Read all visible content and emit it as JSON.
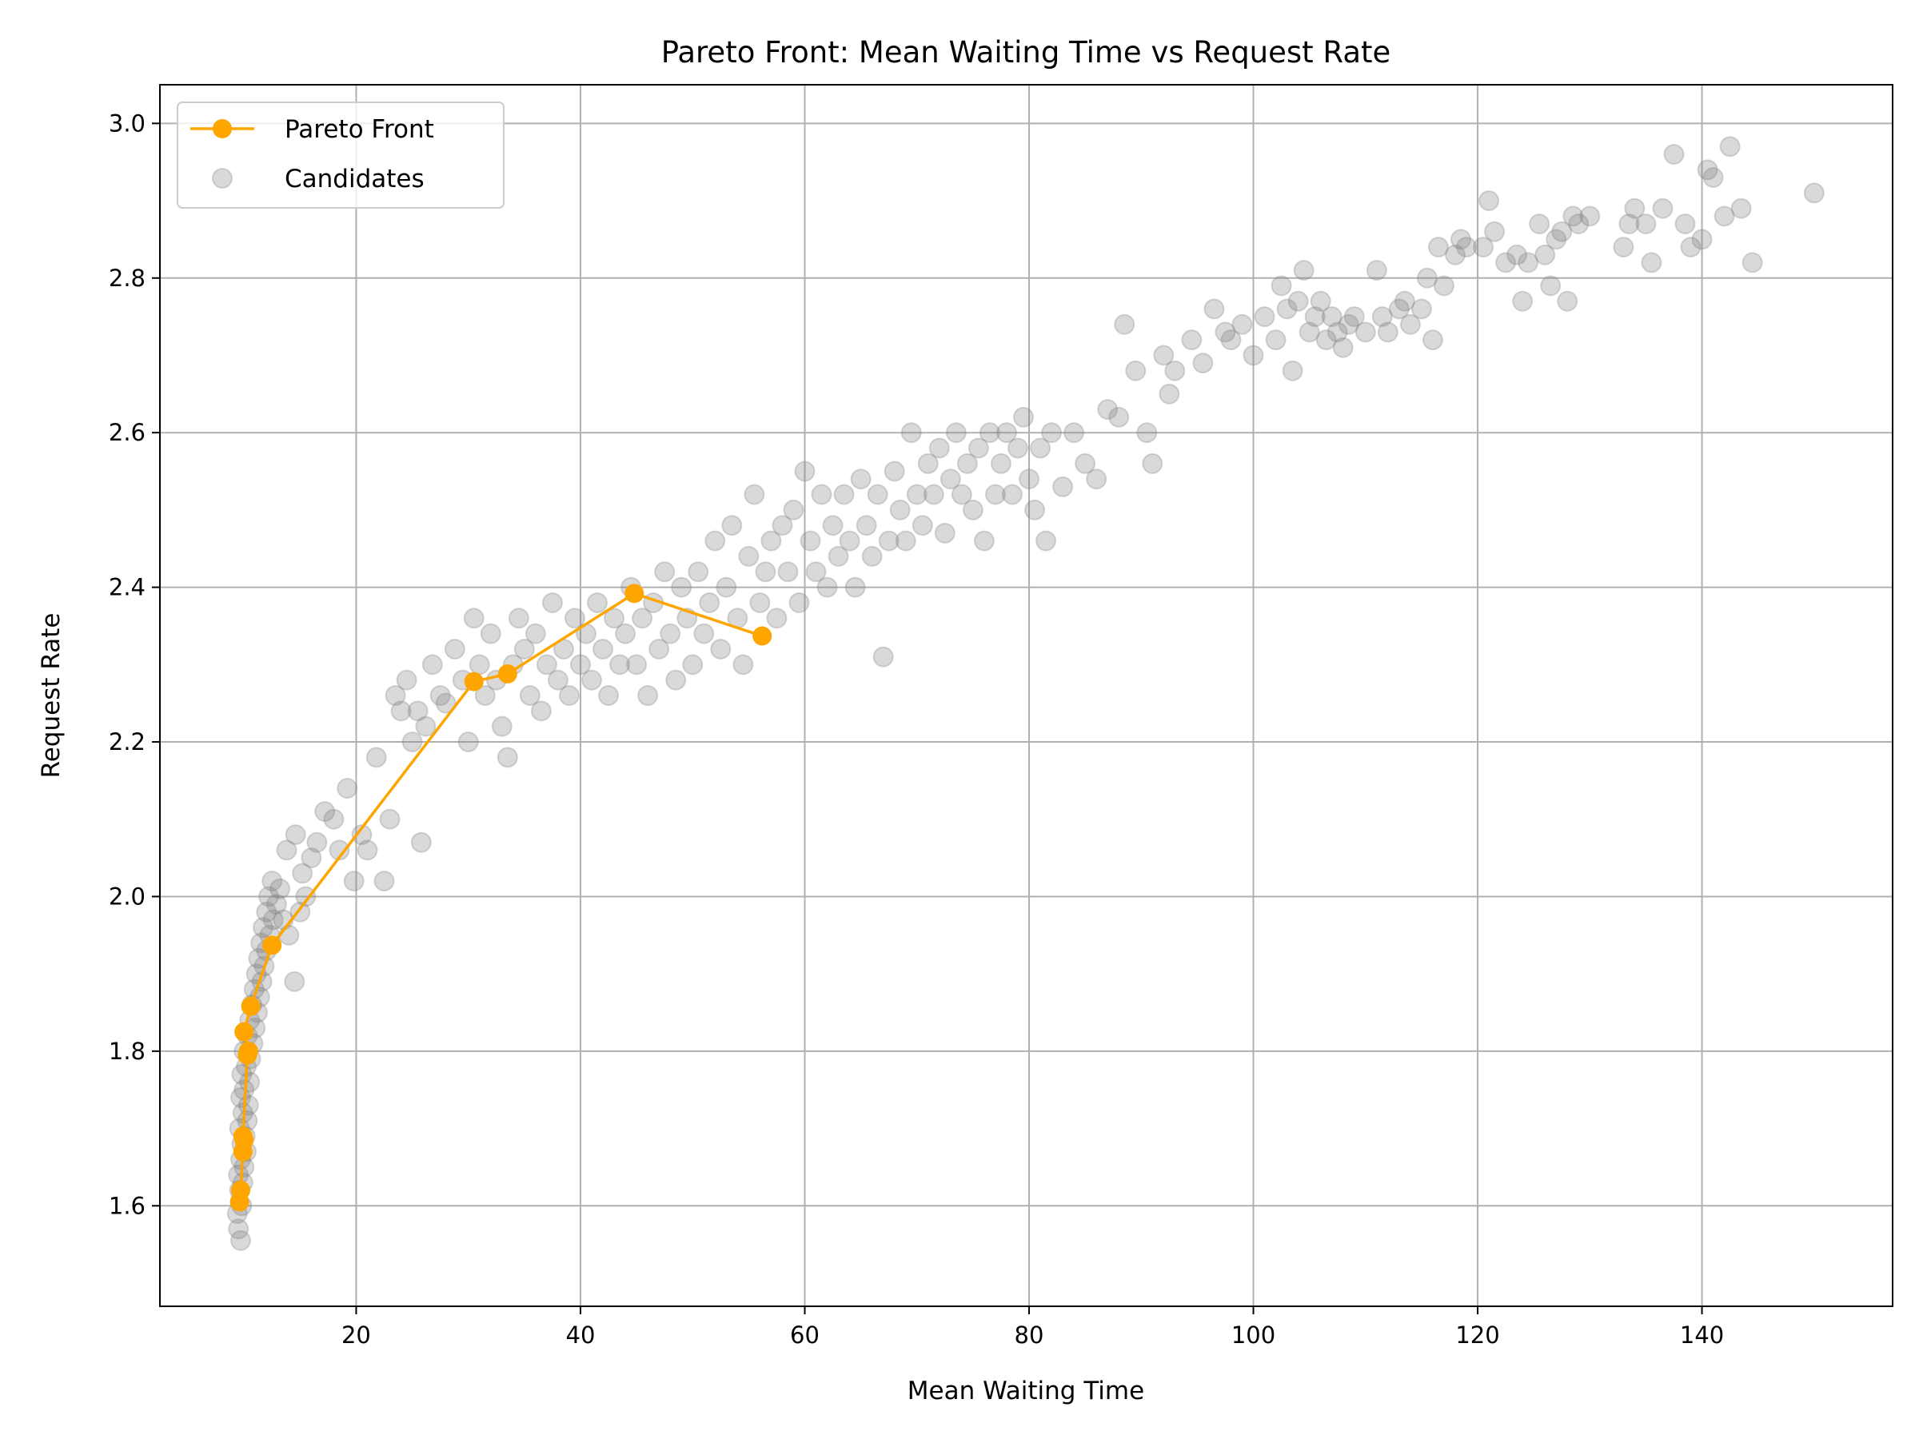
{
  "chart_data": {
    "type": "scatter",
    "title": "Pareto Front: Mean Waiting Time vs Request Rate",
    "xlabel": "Mean Waiting Time",
    "ylabel": "Request Rate",
    "xlim": [
      2.5,
      157
    ],
    "ylim": [
      1.47,
      3.05
    ],
    "xticks": [
      20,
      40,
      60,
      80,
      100,
      120,
      140
    ],
    "yticks": [
      1.6,
      1.8,
      2.0,
      2.2,
      2.4,
      2.6,
      2.8,
      3.0
    ],
    "xtick_labels": [
      "20",
      "40",
      "60",
      "80",
      "100",
      "120",
      "140"
    ],
    "ytick_labels": [
      "1.6",
      "1.8",
      "2.0",
      "2.2",
      "2.4",
      "2.6",
      "2.8",
      "3.0"
    ],
    "grid": true,
    "legend_position": "top-left",
    "legend": [
      "Pareto Front",
      "Candidates"
    ],
    "colors": {
      "pareto": "#ffa500",
      "candidates": "#808080"
    },
    "series": [
      {
        "name": "Pareto Front",
        "type": "line",
        "marker": "circle",
        "points": [
          [
            9.6,
            1.605
          ],
          [
            9.7,
            1.62
          ],
          [
            9.9,
            1.67
          ],
          [
            10.0,
            1.685
          ],
          [
            9.9,
            1.69
          ],
          [
            10.3,
            1.795
          ],
          [
            10.4,
            1.8
          ],
          [
            10.0,
            1.825
          ],
          [
            10.6,
            1.858
          ],
          [
            12.5,
            1.937
          ],
          [
            30.5,
            2.278
          ],
          [
            33.5,
            2.288
          ],
          [
            44.8,
            2.392
          ],
          [
            56.2,
            2.337
          ]
        ]
      },
      {
        "name": "Candidates",
        "type": "scatter",
        "marker": "circle",
        "opacity": 0.3,
        "points": [
          [
            9.5,
            1.57
          ],
          [
            9.7,
            1.555
          ],
          [
            9.4,
            1.59
          ],
          [
            9.8,
            1.6
          ],
          [
            9.6,
            1.62
          ],
          [
            9.9,
            1.63
          ],
          [
            9.5,
            1.64
          ],
          [
            10.0,
            1.65
          ],
          [
            9.7,
            1.66
          ],
          [
            10.2,
            1.67
          ],
          [
            9.8,
            1.68
          ],
          [
            10.1,
            1.69
          ],
          [
            9.6,
            1.7
          ],
          [
            10.3,
            1.71
          ],
          [
            9.9,
            1.72
          ],
          [
            10.4,
            1.73
          ],
          [
            9.7,
            1.74
          ],
          [
            10.0,
            1.75
          ],
          [
            10.5,
            1.76
          ],
          [
            9.8,
            1.77
          ],
          [
            10.2,
            1.78
          ],
          [
            10.6,
            1.79
          ],
          [
            10.0,
            1.8
          ],
          [
            10.8,
            1.81
          ],
          [
            10.3,
            1.82
          ],
          [
            11.0,
            1.83
          ],
          [
            10.5,
            1.84
          ],
          [
            11.2,
            1.85
          ],
          [
            10.7,
            1.86
          ],
          [
            11.4,
            1.87
          ],
          [
            10.9,
            1.88
          ],
          [
            11.6,
            1.89
          ],
          [
            11.1,
            1.9
          ],
          [
            11.8,
            1.91
          ],
          [
            11.3,
            1.92
          ],
          [
            12.0,
            1.93
          ],
          [
            11.5,
            1.94
          ],
          [
            12.3,
            1.95
          ],
          [
            11.7,
            1.96
          ],
          [
            12.6,
            1.97
          ],
          [
            12.0,
            1.98
          ],
          [
            12.9,
            1.99
          ],
          [
            12.2,
            2.0
          ],
          [
            13.2,
            2.01
          ],
          [
            12.5,
            2.02
          ],
          [
            13.5,
            1.97
          ],
          [
            14.0,
            1.95
          ],
          [
            14.5,
            1.89
          ],
          [
            15.0,
            1.98
          ],
          [
            15.5,
            2.0
          ],
          [
            13.8,
            2.06
          ],
          [
            14.6,
            2.08
          ],
          [
            15.2,
            2.03
          ],
          [
            16.0,
            2.05
          ],
          [
            16.5,
            2.07
          ],
          [
            17.2,
            2.11
          ],
          [
            18.0,
            2.1
          ],
          [
            18.5,
            2.06
          ],
          [
            19.2,
            2.14
          ],
          [
            19.8,
            2.02
          ],
          [
            20.5,
            2.08
          ],
          [
            21.0,
            2.06
          ],
          [
            21.8,
            2.18
          ],
          [
            22.5,
            2.02
          ],
          [
            23.0,
            2.1
          ],
          [
            23.5,
            2.26
          ],
          [
            24.0,
            2.24
          ],
          [
            24.5,
            2.28
          ],
          [
            25.0,
            2.2
          ],
          [
            25.5,
            2.24
          ],
          [
            25.8,
            2.07
          ],
          [
            26.2,
            2.22
          ],
          [
            26.8,
            2.3
          ],
          [
            27.5,
            2.26
          ],
          [
            28.0,
            2.25
          ],
          [
            28.8,
            2.32
          ],
          [
            29.5,
            2.28
          ],
          [
            30.0,
            2.2
          ],
          [
            30.5,
            2.36
          ],
          [
            31.0,
            2.3
          ],
          [
            31.5,
            2.26
          ],
          [
            32.0,
            2.34
          ],
          [
            32.5,
            2.28
          ],
          [
            33.0,
            2.22
          ],
          [
            33.5,
            2.18
          ],
          [
            34.0,
            2.3
          ],
          [
            34.5,
            2.36
          ],
          [
            35.0,
            2.32
          ],
          [
            35.5,
            2.26
          ],
          [
            36.0,
            2.34
          ],
          [
            36.5,
            2.24
          ],
          [
            37.0,
            2.3
          ],
          [
            37.5,
            2.38
          ],
          [
            38.0,
            2.28
          ],
          [
            38.5,
            2.32
          ],
          [
            39.0,
            2.26
          ],
          [
            39.5,
            2.36
          ],
          [
            40.0,
            2.3
          ],
          [
            40.5,
            2.34
          ],
          [
            41.0,
            2.28
          ],
          [
            41.5,
            2.38
          ],
          [
            42.0,
            2.32
          ],
          [
            42.5,
            2.26
          ],
          [
            43.0,
            2.36
          ],
          [
            43.5,
            2.3
          ],
          [
            44.0,
            2.34
          ],
          [
            44.5,
            2.4
          ],
          [
            45.0,
            2.3
          ],
          [
            45.5,
            2.36
          ],
          [
            46.0,
            2.26
          ],
          [
            46.5,
            2.38
          ],
          [
            47.0,
            2.32
          ],
          [
            47.5,
            2.42
          ],
          [
            48.0,
            2.34
          ],
          [
            48.5,
            2.28
          ],
          [
            49.0,
            2.4
          ],
          [
            49.5,
            2.36
          ],
          [
            50.0,
            2.3
          ],
          [
            50.5,
            2.42
          ],
          [
            51.0,
            2.34
          ],
          [
            51.5,
            2.38
          ],
          [
            52.0,
            2.46
          ],
          [
            52.5,
            2.32
          ],
          [
            53.0,
            2.4
          ],
          [
            53.5,
            2.48
          ],
          [
            54.0,
            2.36
          ],
          [
            54.5,
            2.3
          ],
          [
            55.0,
            2.44
          ],
          [
            55.5,
            2.52
          ],
          [
            56.0,
            2.38
          ],
          [
            56.5,
            2.42
          ],
          [
            57.0,
            2.46
          ],
          [
            57.5,
            2.36
          ],
          [
            58.0,
            2.48
          ],
          [
            58.5,
            2.42
          ],
          [
            59.0,
            2.5
          ],
          [
            59.5,
            2.38
          ],
          [
            60.0,
            2.55
          ],
          [
            60.5,
            2.46
          ],
          [
            61.0,
            2.42
          ],
          [
            61.5,
            2.52
          ],
          [
            62.0,
            2.4
          ],
          [
            62.5,
            2.48
          ],
          [
            63.0,
            2.44
          ],
          [
            63.5,
            2.52
          ],
          [
            64.0,
            2.46
          ],
          [
            64.5,
            2.4
          ],
          [
            65.0,
            2.54
          ],
          [
            65.5,
            2.48
          ],
          [
            66.0,
            2.44
          ],
          [
            66.5,
            2.52
          ],
          [
            67.0,
            2.31
          ],
          [
            67.5,
            2.46
          ],
          [
            68.0,
            2.55
          ],
          [
            68.5,
            2.5
          ],
          [
            69.0,
            2.46
          ],
          [
            69.5,
            2.6
          ],
          [
            70.0,
            2.52
          ],
          [
            70.5,
            2.48
          ],
          [
            71.0,
            2.56
          ],
          [
            71.5,
            2.52
          ],
          [
            72.0,
            2.58
          ],
          [
            72.5,
            2.47
          ],
          [
            73.0,
            2.54
          ],
          [
            73.5,
            2.6
          ],
          [
            74.0,
            2.52
          ],
          [
            74.5,
            2.56
          ],
          [
            75.0,
            2.5
          ],
          [
            75.5,
            2.58
          ],
          [
            76.0,
            2.46
          ],
          [
            76.5,
            2.6
          ],
          [
            77.0,
            2.52
          ],
          [
            77.5,
            2.56
          ],
          [
            78.0,
            2.6
          ],
          [
            78.5,
            2.52
          ],
          [
            79.0,
            2.58
          ],
          [
            79.5,
            2.62
          ],
          [
            80.0,
            2.54
          ],
          [
            80.5,
            2.5
          ],
          [
            81.0,
            2.58
          ],
          [
            81.5,
            2.46
          ],
          [
            82.0,
            2.6
          ],
          [
            83.0,
            2.53
          ],
          [
            84.0,
            2.6
          ],
          [
            85.0,
            2.56
          ],
          [
            86.0,
            2.54
          ],
          [
            87.0,
            2.63
          ],
          [
            88.0,
            2.62
          ],
          [
            88.5,
            2.74
          ],
          [
            89.5,
            2.68
          ],
          [
            90.5,
            2.6
          ],
          [
            91.0,
            2.56
          ],
          [
            92.0,
            2.7
          ],
          [
            92.5,
            2.65
          ],
          [
            93.0,
            2.68
          ],
          [
            94.5,
            2.72
          ],
          [
            95.5,
            2.69
          ],
          [
            96.5,
            2.76
          ],
          [
            97.5,
            2.73
          ],
          [
            98.0,
            2.72
          ],
          [
            99.0,
            2.74
          ],
          [
            100.0,
            2.7
          ],
          [
            101.0,
            2.75
          ],
          [
            102.0,
            2.72
          ],
          [
            102.5,
            2.79
          ],
          [
            103.0,
            2.76
          ],
          [
            103.5,
            2.68
          ],
          [
            104.0,
            2.77
          ],
          [
            104.5,
            2.81
          ],
          [
            105.0,
            2.73
          ],
          [
            105.5,
            2.75
          ],
          [
            106.0,
            2.77
          ],
          [
            106.5,
            2.72
          ],
          [
            107.0,
            2.75
          ],
          [
            107.5,
            2.73
          ],
          [
            108.0,
            2.71
          ],
          [
            108.5,
            2.74
          ],
          [
            109.0,
            2.75
          ],
          [
            110.0,
            2.73
          ],
          [
            111.0,
            2.81
          ],
          [
            111.5,
            2.75
          ],
          [
            112.0,
            2.73
          ],
          [
            113.0,
            2.76
          ],
          [
            113.5,
            2.77
          ],
          [
            114.0,
            2.74
          ],
          [
            115.0,
            2.76
          ],
          [
            115.5,
            2.8
          ],
          [
            116.0,
            2.72
          ],
          [
            116.5,
            2.84
          ],
          [
            117.0,
            2.79
          ],
          [
            118.0,
            2.83
          ],
          [
            118.5,
            2.85
          ],
          [
            119.0,
            2.84
          ],
          [
            120.5,
            2.84
          ],
          [
            121.0,
            2.9
          ],
          [
            121.5,
            2.86
          ],
          [
            122.5,
            2.82
          ],
          [
            123.5,
            2.83
          ],
          [
            124.0,
            2.77
          ],
          [
            124.5,
            2.82
          ],
          [
            125.5,
            2.87
          ],
          [
            126.0,
            2.83
          ],
          [
            126.5,
            2.79
          ],
          [
            127.0,
            2.85
          ],
          [
            127.5,
            2.86
          ],
          [
            128.0,
            2.77
          ],
          [
            128.5,
            2.88
          ],
          [
            129.0,
            2.87
          ],
          [
            130.0,
            2.88
          ],
          [
            133.0,
            2.84
          ],
          [
            133.5,
            2.87
          ],
          [
            134.0,
            2.89
          ],
          [
            135.0,
            2.87
          ],
          [
            135.5,
            2.82
          ],
          [
            136.5,
            2.89
          ],
          [
            137.5,
            2.96
          ],
          [
            138.5,
            2.87
          ],
          [
            139.0,
            2.84
          ],
          [
            140.0,
            2.85
          ],
          [
            140.5,
            2.94
          ],
          [
            141.0,
            2.93
          ],
          [
            142.0,
            2.88
          ],
          [
            142.5,
            2.97
          ],
          [
            143.5,
            2.89
          ],
          [
            144.5,
            2.82
          ],
          [
            150.0,
            2.91
          ]
        ]
      }
    ]
  }
}
